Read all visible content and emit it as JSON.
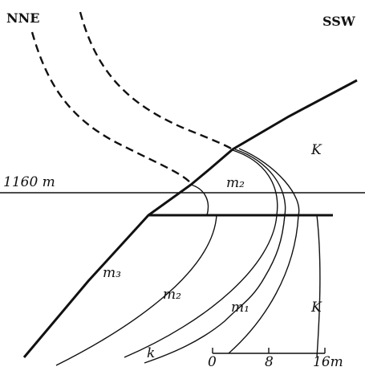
{
  "header": {
    "left": "NNE",
    "right": "SSW"
  },
  "level": "1160 m",
  "labels": [
    "K",
    "m₂",
    "m₃",
    "m₂",
    "m₁",
    "K",
    "k"
  ],
  "scale": [
    "0",
    "8",
    "16m"
  ]
}
